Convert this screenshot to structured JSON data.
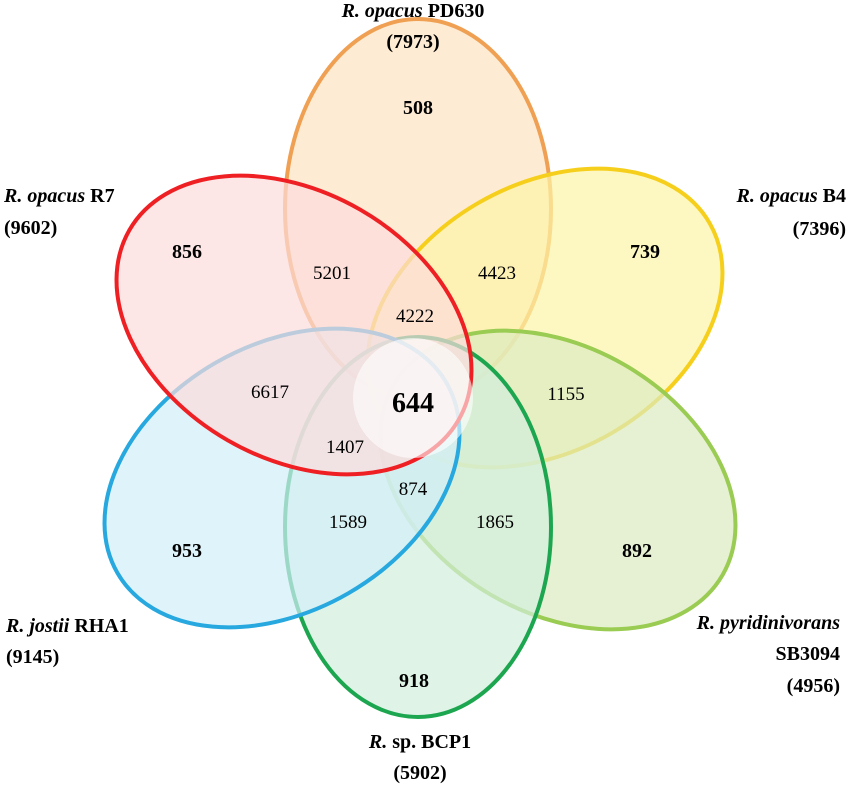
{
  "sets": [
    {
      "id": "pd630",
      "genus": "R. opacus",
      "strain": "PD630",
      "total": "(7973)",
      "unique": "508",
      "stroke": "#F0A052",
      "fill": "#FDE4C4"
    },
    {
      "id": "b4",
      "genus": "R. opacus",
      "strain": "B4",
      "total": "(7396)",
      "unique": "739",
      "stroke": "#F5CF1C",
      "fill": "#FCF5A6"
    },
    {
      "id": "sb3094",
      "genus": "R. pyridinivorans",
      "strain": "SB3094",
      "total": "(4956)",
      "unique": "892",
      "stroke": "#9ACB52",
      "fill": "#DCEBC0"
    },
    {
      "id": "bcp1",
      "genus": "R.",
      "strain": "sp. BCP1",
      "total": "(5902)",
      "unique": "918",
      "stroke": "#1DA650",
      "fill": "#D2EEDC"
    },
    {
      "id": "rha1",
      "genus": "R. jostii",
      "strain": "RHA1",
      "total": "(9145)",
      "unique": "953",
      "stroke": "#27A8DF",
      "fill": "#D2EEF8"
    },
    {
      "id": "r7",
      "genus": "R. opacus",
      "strain": "R7",
      "total": "(9602)",
      "unique": "856",
      "stroke": "#EE2024",
      "fill": "#FCDCDC"
    }
  ],
  "overlaps": {
    "r7_pd630": "5201",
    "pd630_b4": "4423",
    "r7_pd630_b4": "4222",
    "r7_rha1": "6617",
    "b4_sb3094": "1155",
    "r7_rha1_bcp1": "1407",
    "rha1_bcp1_sb3094": "874",
    "rha1_bcp1": "1589",
    "bcp1_sb3094": "1865"
  },
  "core": "644"
}
